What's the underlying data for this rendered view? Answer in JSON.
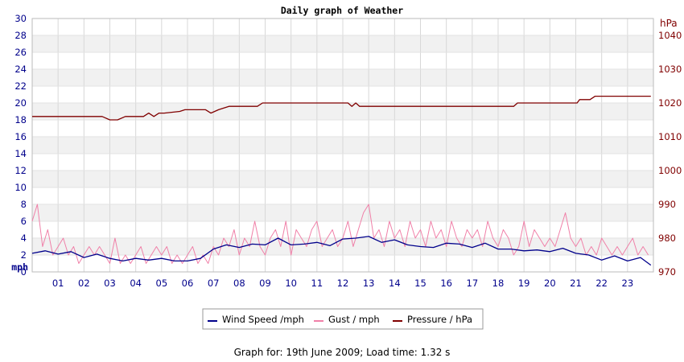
{
  "chart_data": {
    "type": "line",
    "title": "Daily graph of Weather",
    "y_left_unit": "mph",
    "y_right_unit": "hPa",
    "ylim_left": [
      0,
      30
    ],
    "ylim_right": [
      970,
      1045
    ],
    "yticks_left": [
      0,
      2,
      4,
      6,
      8,
      10,
      12,
      14,
      16,
      18,
      20,
      22,
      24,
      26,
      28,
      30
    ],
    "yticks_right": [
      970,
      980,
      990,
      1000,
      1010,
      1020,
      1030,
      1040
    ],
    "xlim": [
      0,
      24
    ],
    "xtick_labels": [
      "01",
      "02",
      "03",
      "04",
      "05",
      "06",
      "07",
      "08",
      "09",
      "10",
      "11",
      "12",
      "13",
      "14",
      "15",
      "16",
      "17",
      "18",
      "19",
      "20",
      "21",
      "22",
      "23"
    ],
    "grid": true,
    "legend_position": "bottom",
    "series": [
      {
        "name": "Wind Speed /mph",
        "color": "#00008b",
        "axis": "left",
        "x": [
          0,
          0.5,
          1,
          1.5,
          2,
          2.5,
          3,
          3.5,
          4,
          4.5,
          5,
          5.5,
          6,
          6.5,
          7,
          7.5,
          8,
          8.5,
          9,
          9.5,
          10,
          10.5,
          11,
          11.5,
          12,
          12.5,
          13,
          13.5,
          14,
          14.5,
          15,
          15.5,
          16,
          16.5,
          17,
          17.5,
          18,
          18.5,
          19,
          19.5,
          20,
          20.5,
          21,
          21.5,
          22,
          22.5,
          23,
          23.5,
          23.9
        ],
        "values": [
          2.2,
          2.5,
          2.1,
          2.4,
          1.7,
          2.1,
          1.6,
          1.3,
          1.6,
          1.4,
          1.6,
          1.3,
          1.3,
          1.6,
          2.7,
          3.2,
          2.9,
          3.3,
          3.2,
          4.0,
          3.2,
          3.3,
          3.5,
          3.1,
          3.9,
          4.0,
          4.2,
          3.5,
          3.8,
          3.2,
          3.0,
          2.9,
          3.4,
          3.3,
          2.9,
          3.4,
          2.7,
          2.7,
          2.5,
          2.6,
          2.4,
          2.8,
          2.2,
          2.0,
          1.4,
          1.9,
          1.3,
          1.7,
          0.8
        ]
      },
      {
        "name": "Gust / mph",
        "color": "#f080a8",
        "axis": "left",
        "x": [
          0,
          0.2,
          0.4,
          0.6,
          0.8,
          1,
          1.2,
          1.4,
          1.6,
          1.8,
          2,
          2.2,
          2.4,
          2.6,
          2.8,
          3,
          3.2,
          3.4,
          3.6,
          3.8,
          4,
          4.2,
          4.4,
          4.6,
          4.8,
          5,
          5.2,
          5.4,
          5.6,
          5.8,
          6,
          6.2,
          6.4,
          6.6,
          6.8,
          7,
          7.2,
          7.4,
          7.6,
          7.8,
          8,
          8.2,
          8.4,
          8.6,
          8.8,
          9,
          9.2,
          9.4,
          9.6,
          9.8,
          10,
          10.2,
          10.4,
          10.6,
          10.8,
          11,
          11.2,
          11.4,
          11.6,
          11.8,
          12,
          12.2,
          12.4,
          12.6,
          12.8,
          13,
          13.2,
          13.4,
          13.6,
          13.8,
          14,
          14.2,
          14.4,
          14.6,
          14.8,
          15,
          15.2,
          15.4,
          15.6,
          15.8,
          16,
          16.2,
          16.4,
          16.6,
          16.8,
          17,
          17.2,
          17.4,
          17.6,
          17.8,
          18,
          18.2,
          18.4,
          18.6,
          18.8,
          19,
          19.2,
          19.4,
          19.6,
          19.8,
          20,
          20.2,
          20.4,
          20.6,
          20.8,
          21,
          21.2,
          21.4,
          21.6,
          21.8,
          22,
          22.2,
          22.4,
          22.6,
          22.8,
          23,
          23.2,
          23.4,
          23.6,
          23.8
        ],
        "values": [
          6,
          8,
          3,
          5,
          2,
          3,
          4,
          2,
          3,
          1,
          2,
          3,
          2,
          3,
          2,
          1,
          4,
          1,
          2,
          1,
          2,
          3,
          1,
          2,
          3,
          2,
          3,
          1,
          2,
          1,
          2,
          3,
          1,
          2,
          1,
          3,
          2,
          4,
          3,
          5,
          2,
          4,
          3,
          6,
          3,
          2,
          4,
          5,
          3,
          6,
          2,
          5,
          4,
          3,
          5,
          6,
          3,
          4,
          5,
          3,
          4,
          6,
          3,
          5,
          7,
          8,
          4,
          5,
          3,
          6,
          4,
          5,
          3,
          6,
          4,
          5,
          3,
          6,
          4,
          5,
          3,
          6,
          4,
          3,
          5,
          4,
          5,
          3,
          6,
          4,
          3,
          5,
          4,
          2,
          3,
          6,
          3,
          5,
          4,
          3,
          4,
          3,
          5,
          7,
          4,
          3,
          4,
          2,
          3,
          2,
          4,
          3,
          2,
          3,
          2,
          3,
          4,
          2,
          3,
          2
        ]
      },
      {
        "name": "Pressure / hPa",
        "color": "#800000",
        "axis": "right",
        "x": [
          0,
          2.7,
          3,
          3.3,
          3.6,
          4.3,
          4.5,
          4.7,
          4.9,
          5.1,
          5.7,
          5.9,
          6.7,
          6.9,
          7.2,
          7.6,
          8.7,
          8.9,
          11.1,
          12.2,
          12.35,
          12.5,
          12.65,
          12.8,
          13.5,
          18.6,
          18.75,
          21.05,
          21.15,
          21.55,
          21.75,
          23.9
        ],
        "values": [
          1016,
          1016,
          1015,
          1015,
          1016,
          1016,
          1017,
          1016,
          1017,
          1017,
          1017.5,
          1018,
          1018,
          1017,
          1018,
          1019,
          1019,
          1020,
          1020,
          1020,
          1019,
          1020,
          1019,
          1019,
          1019,
          1019,
          1020,
          1020,
          1021,
          1021,
          1022,
          1022
        ]
      }
    ]
  },
  "footer": {
    "text": "Graph for: 19th June 2009; Load time: 1.32 s"
  }
}
